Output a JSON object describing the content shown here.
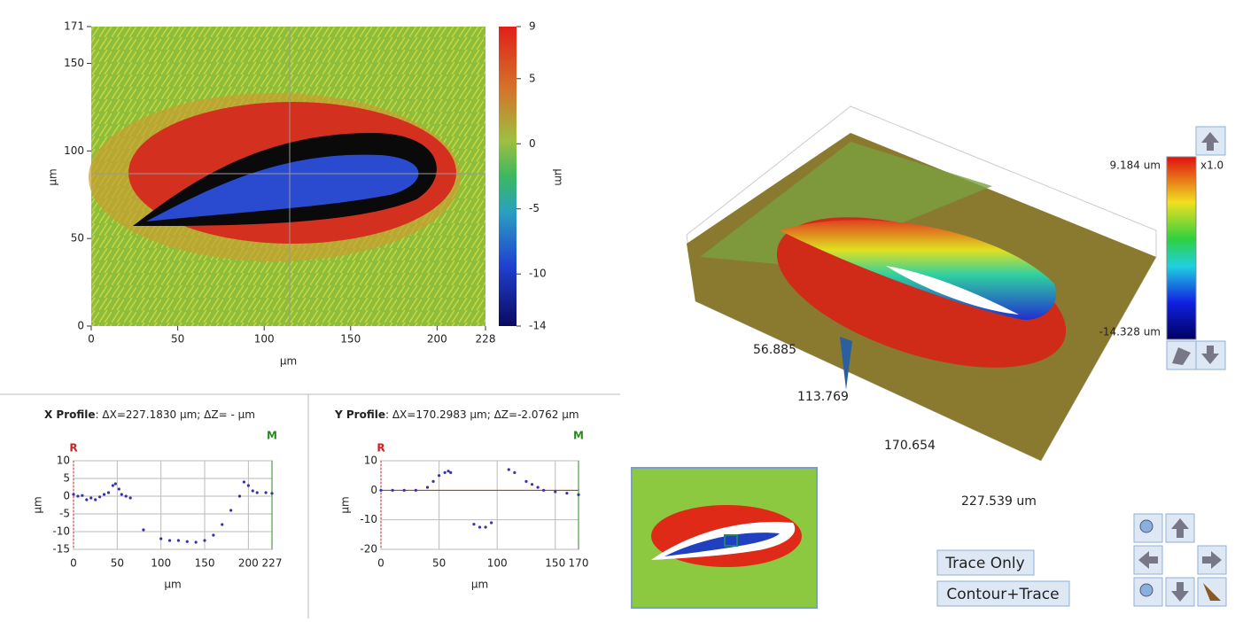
{
  "height_map": {
    "x_label": "µm",
    "y_label": "µm",
    "xlim": [
      0,
      228
    ],
    "ylim": [
      0,
      171
    ],
    "xticks": [
      0,
      50,
      100,
      150,
      200,
      228
    ],
    "yticks": [
      0,
      50,
      100,
      150,
      171
    ]
  },
  "colorbar": {
    "label": "µm",
    "lim": [
      -14,
      9
    ],
    "ticks": [
      9,
      5,
      0,
      -5,
      -10,
      -14
    ]
  },
  "x_profile": {
    "type": "scatter",
    "title": "X Profile",
    "info": ": ΔX=227.1830 µm; ΔZ= -  µm",
    "marker_left": "R",
    "marker_right": "M",
    "x_label": "µm",
    "y_label": "µm",
    "color": "#3333aa",
    "grid": true,
    "xlim": [
      0,
      227
    ],
    "ylim": [
      -15,
      10
    ],
    "xticks": [
      0,
      50,
      100,
      150,
      200,
      227
    ],
    "yticks": [
      10,
      5,
      0,
      -5,
      -10,
      -15
    ],
    "x": [
      0,
      5,
      10,
      15,
      20,
      25,
      30,
      35,
      40,
      45,
      48,
      52,
      55,
      60,
      65,
      80,
      100,
      110,
      120,
      130,
      140,
      150,
      160,
      170,
      180,
      190,
      195,
      200,
      205,
      210,
      220,
      227
    ],
    "values": [
      0.5,
      0,
      0.2,
      -1,
      -0.5,
      -1,
      -0.2,
      0.5,
      1,
      3,
      3.5,
      2,
      0.5,
      0,
      -0.5,
      -9.5,
      -12,
      -12.5,
      -12.5,
      -12.8,
      -13,
      -12.5,
      -11,
      -8,
      -4,
      0,
      4,
      3,
      1.5,
      1,
      1,
      0.8
    ]
  },
  "y_profile": {
    "type": "scatter",
    "title": "Y Profile",
    "info": ": ΔX=170.2983 µm; ΔZ=-2.0762 µm",
    "marker_left": "R",
    "marker_right": "M",
    "x_label": "µm",
    "y_label": "µm",
    "color": "#3333aa",
    "grid": true,
    "xlim": [
      0,
      170
    ],
    "ylim": [
      -20,
      10
    ],
    "xticks": [
      0,
      50,
      100,
      150,
      170
    ],
    "yticks": [
      10,
      0,
      -10,
      -20
    ],
    "x": [
      0,
      10,
      20,
      30,
      40,
      45,
      50,
      55,
      58,
      60,
      80,
      85,
      90,
      95,
      110,
      115,
      125,
      130,
      135,
      140,
      150,
      160,
      170
    ],
    "values": [
      0,
      0,
      0,
      0,
      1,
      3,
      5,
      6,
      6.5,
      6,
      -11.5,
      -12.5,
      -12.5,
      -11,
      7,
      6,
      3,
      2,
      1,
      0,
      -0.5,
      -1,
      -1.5
    ]
  },
  "view_3d": {
    "axis_labels": [
      "56.885",
      "113.769",
      "170.654",
      "227.539 um"
    ],
    "color_max": "9.184 um",
    "color_min": "-14.328 um",
    "scale": "x1.0"
  },
  "buttons": {
    "trace_only": "Trace Only",
    "contour_trace": "Contour+Trace"
  }
}
